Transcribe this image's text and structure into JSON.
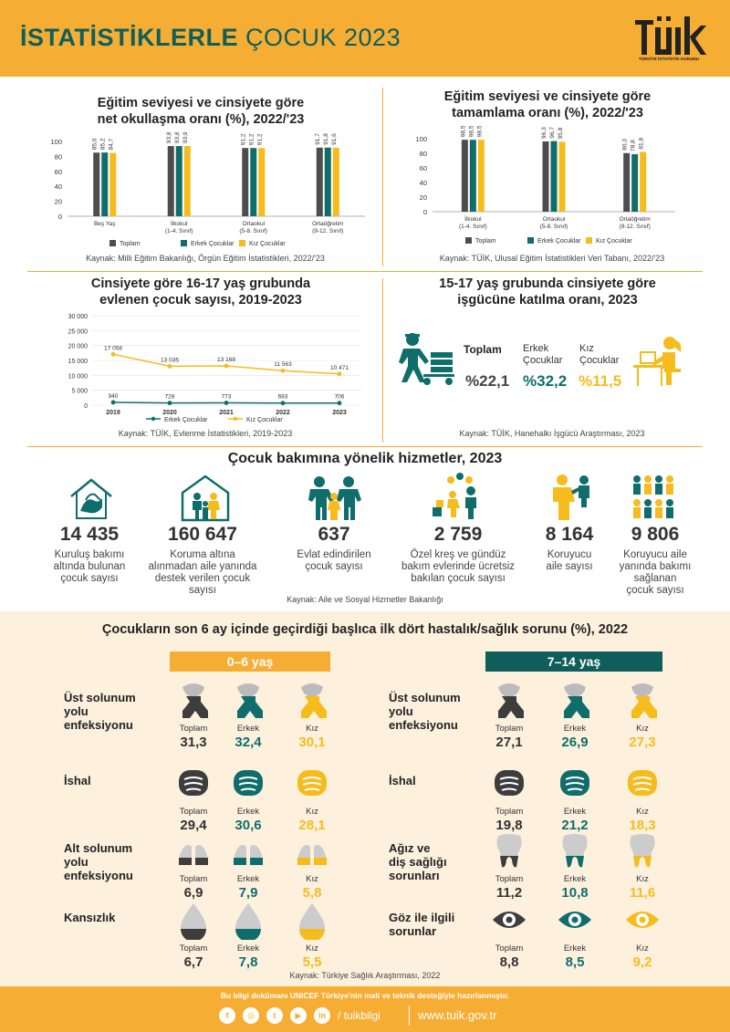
{
  "header": {
    "title_bold": "İSTATİSTİKLERLE",
    "title_light": "ÇOCUK 2023",
    "logo": "TÜİK",
    "logo_sub": "TÜRKİYE İSTATİSTİK KURUMU"
  },
  "colors": {
    "toplam": "#4d4d4d",
    "erkek": "#0f6e6b",
    "kiz": "#f6bb1d",
    "accent": "#f5ad33",
    "teal_dark": "#0f5e5c"
  },
  "panel1": {
    "title1": "Eğitim seviyesi ve cinsiyete göre",
    "title2": "net okullaşma oranı (%), 2022/'23",
    "source": "Kaynak: Milli Eğitim Bakanlığı, Örgün Eğitim İstatistikleri, 2022/'23"
  },
  "panel2": {
    "title1": "Eğitim seviyesi ve cinsiyete göre",
    "title2": "tamamlama oranı (%), 2022/'23",
    "source": "Kaynak: TÜİK, Ulusal Eğitim İstatistikleri Veri Tabanı, 2022/'23"
  },
  "panel3": {
    "title1": "Cinsiyete göre 16-17 yaş grubunda",
    "title2": "evlenen çocuk sayısı, 2019-2023",
    "source": "Kaynak: TÜİK, Evlenme İstatistikleri, 2019-2023"
  },
  "panel4": {
    "title1": "15-17 yaş grubunda cinsiyete göre",
    "title2": "işgücüne katılma oranı, 2023",
    "source": "Kaynak: TÜİK, Hanehalkı İşgücü Araştırması, 2023",
    "toplam_label": "Toplam",
    "erkek_label1": "Erkek",
    "erkek_label2": "Çocuklar",
    "kiz_label1": "Kız",
    "kiz_label2": "Çocuklar",
    "toplam_value": "%22,1",
    "erkek_value": "%32,2",
    "kiz_value": "%11,5"
  },
  "chart_data": [
    {
      "type": "bar",
      "title": "Eğitim seviyesi ve cinsiyete göre net okullaşma oranı (%), 2022/'23",
      "categories": [
        "Beş Yaş",
        "İlkokul (1-4. Sınıf)",
        "Ortaokul (5-8. Sınıf)",
        "Ortaöğretim (9-12. Sınıf)"
      ],
      "category_lines": [
        [
          "Beş Yaş"
        ],
        [
          "İlkokul",
          "(1-4. Sınıf)"
        ],
        [
          "Ortaokul",
          "(5-8. Sınıf)"
        ],
        [
          "Ortaöğretim",
          "(9-12. Sınıf)"
        ]
      ],
      "series": [
        {
          "name": "Toplam",
          "values": [
            85.0,
            93.8,
            91.2,
            91.7
          ],
          "labels": [
            "85,0",
            "93,8",
            "91,2",
            "91,7"
          ]
        },
        {
          "name": "Erkek Çocuklar",
          "values": [
            85.2,
            93.8,
            91.2,
            91.8
          ],
          "labels": [
            "85,2",
            "93,8",
            "91,2",
            "91,8"
          ]
        },
        {
          "name": "Kız Çocuklar",
          "values": [
            84.7,
            93.9,
            91.2,
            91.6
          ],
          "labels": [
            "84,7",
            "93,9",
            "91,2",
            "91,6"
          ]
        }
      ],
      "yticks": [
        "100",
        "80",
        "60",
        "40",
        "20",
        "0"
      ],
      "ylim": [
        0,
        100
      ],
      "legend": "bottom"
    },
    {
      "type": "bar",
      "title": "Eğitim seviyesi ve cinsiyete göre tamamlama oranı (%), 2022/'23",
      "categories": [
        "İlkokul (1-4. Sınıf)",
        "Ortaokul (5-8. Sınıf)",
        "Ortaöğretim (9-12. Sınıf)"
      ],
      "category_lines": [
        [
          "İlkokul",
          "(1-4. Sınıf)"
        ],
        [
          "Ortaokul",
          "(5-8. Sınıf)"
        ],
        [
          "Ortaöğretim",
          "(9-12. Sınıf)"
        ]
      ],
      "series": [
        {
          "name": "Toplam",
          "values": [
            98.5,
            96.3,
            80.3
          ],
          "labels": [
            "98,5",
            "96,3",
            "80,3"
          ]
        },
        {
          "name": "Erkek Çocuklar",
          "values": [
            98.5,
            96.7,
            78.8
          ],
          "labels": [
            "98,5",
            "96,7",
            "78,8"
          ]
        },
        {
          "name": "Kız Çocuklar",
          "values": [
            98.5,
            95.8,
            81.8
          ],
          "labels": [
            "98,5",
            "95,8",
            "81,8"
          ]
        }
      ],
      "yticks": [
        "100",
        "80",
        "60",
        "40",
        "20",
        "0"
      ],
      "ylim": [
        0,
        100
      ],
      "legend": "bottom"
    },
    {
      "type": "line",
      "title": "Cinsiyete göre 16-17 yaş grubunda evlenen çocuk sayısı, 2019-2023",
      "x": [
        "2019",
        "2020",
        "2021",
        "2022",
        "2023"
      ],
      "series": [
        {
          "name": "Erkek Çocuklar",
          "values": [
            940,
            728,
            773,
            693,
            706
          ],
          "labels": [
            "940",
            "728",
            "773",
            "693",
            "706"
          ]
        },
        {
          "name": "Kız Çocuklar",
          "values": [
            17058,
            13035,
            13168,
            11563,
            10471
          ],
          "labels": [
            "17 058",
            "13 035",
            "13 168",
            "11 563",
            "10 471"
          ]
        }
      ],
      "yticks": [
        "30 000",
        "25 000",
        "20 000",
        "15 000",
        "10 000",
        "5 000",
        "0"
      ],
      "ylim": [
        0,
        30000
      ],
      "grid": true,
      "legend": "bottom"
    }
  ],
  "legend_labels": {
    "toplam": "Toplam",
    "erkek": "Erkek Çocuklar",
    "kiz": "Kız Çocuklar"
  },
  "care": {
    "title": "Çocuk bakımına yönelik hizmetler, 2023",
    "source": "Kaynak: Aile ve Sosyal Hizmetler Bakanlığı",
    "items": [
      {
        "value": "14 435",
        "label": [
          "Kuruluş bakımı",
          "altında bulunan",
          "çocuk sayısı"
        ]
      },
      {
        "value": "160 647",
        "label": [
          "Koruma altına",
          "alınmadan aile yanında",
          "destek verilen çocuk",
          "sayısı"
        ]
      },
      {
        "value": "637",
        "label": [
          "Evlat edindirilen",
          "çocuk sayısı"
        ]
      },
      {
        "value": "2 759",
        "label": [
          "Özel kreş ve gündüz",
          "bakım evlerinde ücretsiz",
          "bakılan çocuk sayısı"
        ]
      },
      {
        "value": "8 164",
        "label": [
          "Koruyucu",
          "aile sayısı"
        ]
      },
      {
        "value": "9 806",
        "label": [
          "Koruyucu aile",
          "yanında bakımı",
          "sağlanan",
          "çocuk sayısı"
        ]
      }
    ]
  },
  "health": {
    "title": "Çocukların son 6 ay içinde geçirdiği başlıca ilk dört hastalık/sağlık sorunu (%), 2022",
    "source": "Kaynak: Türkiye Sağlık Araştırması, 2022",
    "sub_labels": [
      "Toplam",
      "Erkek",
      "Kız"
    ],
    "groups": [
      {
        "age": "0–6 yaş",
        "rows": [
          {
            "label": [
              "Üst solunum",
              "yolu",
              "enfeksiyonu"
            ],
            "icon": "respiratory-icon",
            "values": [
              "31,3",
              "32,4",
              "30,1"
            ]
          },
          {
            "label": [
              "İshal"
            ],
            "icon": "intestine-icon",
            "values": [
              "29,4",
              "30,6",
              "28,1"
            ]
          },
          {
            "label": [
              "Alt solunum",
              "yolu",
              "enfeksiyonu"
            ],
            "icon": "lungs-icon",
            "values": [
              "6,9",
              "7,9",
              "5,8"
            ]
          },
          {
            "label": [
              "Kansızlık"
            ],
            "icon": "blood-drop-icon",
            "values": [
              "6,7",
              "7,8",
              "5,5"
            ]
          }
        ]
      },
      {
        "age": "7–14 yaş",
        "rows": [
          {
            "label": [
              "Üst solunum",
              "yolu",
              "enfeksiyonu"
            ],
            "icon": "respiratory-icon",
            "values": [
              "27,1",
              "26,9",
              "27,3"
            ]
          },
          {
            "label": [
              "İshal"
            ],
            "icon": "intestine-icon",
            "values": [
              "19,8",
              "21,2",
              "18,3"
            ]
          },
          {
            "label": [
              "Ağız ve",
              "diş sağlığı",
              "sorunları"
            ],
            "icon": "tooth-icon",
            "values": [
              "11,2",
              "10,8",
              "11,6"
            ]
          },
          {
            "label": [
              "Göz ile ilgili",
              "sorunlar"
            ],
            "icon": "eye-icon",
            "values": [
              "8,8",
              "8,5",
              "9,2"
            ]
          }
        ]
      }
    ]
  },
  "footer": {
    "note": "Bu bilgi dokümanı UNICEF Türkiye'nin mali ve teknik desteğiyle hazırlanmıştır.",
    "handle": "/ tuikbilgi",
    "url": "www.tuik.gov.tr",
    "social": [
      "f",
      "◎",
      "t",
      "▶",
      "in"
    ]
  }
}
